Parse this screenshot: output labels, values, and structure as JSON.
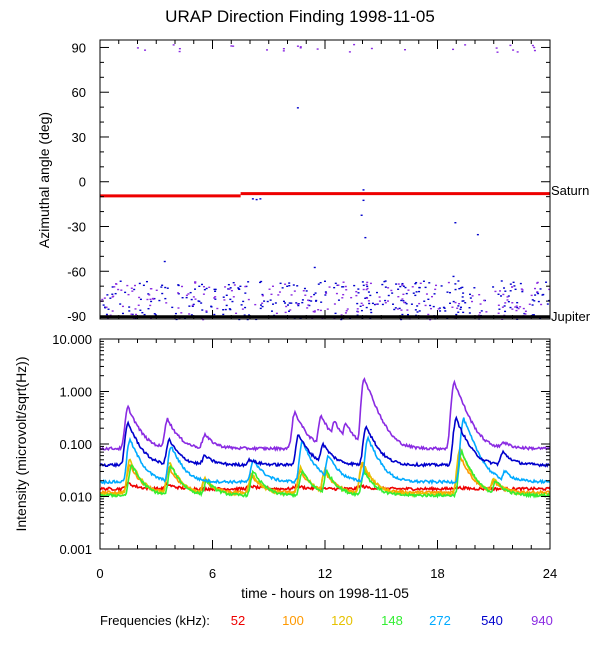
{
  "chart_data": [
    {
      "type": "scatter",
      "title": "URAP Direction Finding  1998-11-05",
      "ylabel": "Azimuthal angle (deg)",
      "xlim": [
        0,
        24
      ],
      "ylim": [
        -92,
        95
      ],
      "yticks": [
        90,
        60,
        30,
        0,
        -30,
        -60,
        -90
      ],
      "ytick_labels": [
        "90",
        "60",
        "30",
        "0",
        "-30",
        "-60",
        "-90"
      ],
      "reference_lines": [
        {
          "label": "Saturn",
          "color": "#ee0000",
          "segments": [
            [
              0,
              7.5,
              -9.5
            ],
            [
              7.5,
              24,
              -8
            ]
          ]
        },
        {
          "label": "Jupiter",
          "color": "#000000",
          "segments": [
            [
              0,
              24,
              -90.5
            ]
          ]
        }
      ],
      "series": [
        {
          "name": "540 kHz",
          "color": "#0000cc",
          "y_band": [
            -92,
            -66
          ],
          "count": 320
        },
        {
          "name": "940 kHz",
          "color": "#8a2be2",
          "y_band": [
            -92,
            -66
          ],
          "count": 220
        },
        {
          "name": "940 kHz high",
          "color": "#8a2be2",
          "y_band": [
            87,
            93
          ],
          "count": 28
        }
      ],
      "outliers": [
        [
          10.5,
          50
        ],
        [
          8.1,
          -11
        ],
        [
          8.3,
          -11.5
        ],
        [
          3.4,
          -53
        ],
        [
          11.4,
          -57
        ],
        [
          14.0,
          -5
        ],
        [
          14.0,
          -12
        ],
        [
          14.1,
          -37
        ],
        [
          13.9,
          -22
        ],
        [
          18.9,
          -27
        ],
        [
          18.8,
          -63
        ],
        [
          18.9,
          -68
        ],
        [
          8.5,
          -11
        ],
        [
          20.1,
          -35
        ]
      ]
    },
    {
      "type": "line",
      "ylabel": "Intensity (microvolt/sqrt(Hz))",
      "xlabel": "time - hours on 1998-11-05",
      "xlim": [
        0,
        24
      ],
      "xticks": [
        0,
        6,
        12,
        18,
        24
      ],
      "xtick_labels": [
        "0",
        "6",
        "12",
        "18",
        "24"
      ],
      "ylim": [
        0.001,
        10
      ],
      "yscale": "log",
      "yticks": [
        10,
        1,
        0.1,
        0.01,
        0.001
      ],
      "ytick_labels": [
        "10.000",
        "1.000",
        "0.100",
        "0.010",
        "0.001"
      ],
      "series": [
        {
          "name": "52",
          "color": "#ee0000",
          "baseline": 0.014,
          "peaks": [
            [
              1.5,
              0.018
            ],
            [
              3.6,
              0.017
            ],
            [
              8.0,
              0.016
            ],
            [
              10.5,
              0.016
            ],
            [
              13.9,
              0.016
            ],
            [
              19.0,
              0.015
            ]
          ]
        },
        {
          "name": "100",
          "color": "#ff9900",
          "baseline": 0.012,
          "peaks": [
            [
              1.6,
              0.04
            ],
            [
              3.7,
              0.035
            ],
            [
              5.6,
              0.02
            ],
            [
              8.1,
              0.025
            ],
            [
              10.7,
              0.03
            ],
            [
              12.0,
              0.03
            ],
            [
              14.0,
              0.04
            ],
            [
              19.2,
              0.06
            ],
            [
              21.0,
              0.02
            ]
          ]
        },
        {
          "name": "120",
          "color": "#e6c200",
          "baseline": 0.011,
          "peaks": [
            [
              1.6,
              0.05
            ],
            [
              3.7,
              0.045
            ],
            [
              5.6,
              0.022
            ],
            [
              8.1,
              0.028
            ],
            [
              10.7,
              0.035
            ],
            [
              12.0,
              0.032
            ],
            [
              14.0,
              0.045
            ],
            [
              19.2,
              0.08
            ],
            [
              21.0,
              0.022
            ]
          ]
        },
        {
          "name": "148",
          "color": "#33ee33",
          "baseline": 0.0105,
          "peaks": [
            [
              1.7,
              0.04
            ],
            [
              3.8,
              0.038
            ],
            [
              5.7,
              0.02
            ],
            [
              8.2,
              0.03
            ],
            [
              10.8,
              0.03
            ],
            [
              12.1,
              0.03
            ],
            [
              14.1,
              0.03
            ],
            [
              19.3,
              0.07
            ],
            [
              21.1,
              0.02
            ]
          ]
        },
        {
          "name": "272",
          "color": "#00aaff",
          "baseline": 0.019,
          "peaks": [
            [
              1.6,
              0.12
            ],
            [
              3.8,
              0.09
            ],
            [
              8.2,
              0.05
            ],
            [
              10.8,
              0.11
            ],
            [
              12.2,
              0.06
            ],
            [
              14.3,
              0.13
            ],
            [
              19.4,
              0.3
            ],
            [
              21.6,
              0.03
            ]
          ]
        },
        {
          "name": "540",
          "color": "#0000cc",
          "baseline": 0.04,
          "peaks": [
            [
              1.5,
              0.25
            ],
            [
              3.7,
              0.12
            ],
            [
              5.6,
              0.06
            ],
            [
              8.0,
              0.05
            ],
            [
              10.6,
              0.15
            ],
            [
              11.9,
              0.1
            ],
            [
              14.2,
              0.22
            ],
            [
              19.0,
              0.3
            ],
            [
              21.5,
              0.07
            ]
          ]
        },
        {
          "name": "940",
          "color": "#8a2be2",
          "baseline": 0.082,
          "peaks": [
            [
              1.5,
              0.5
            ],
            [
              3.6,
              0.3
            ],
            [
              5.6,
              0.15
            ],
            [
              10.4,
              0.4
            ],
            [
              11.8,
              0.35
            ],
            [
              12.5,
              0.28
            ],
            [
              13.1,
              0.25
            ],
            [
              14.1,
              1.8
            ],
            [
              18.9,
              1.5
            ],
            [
              21.5,
              0.11
            ]
          ]
        }
      ]
    }
  ],
  "legend": {
    "label": "Frequencies (kHz):",
    "items": [
      {
        "text": "52",
        "color": "#ee0000"
      },
      {
        "text": "100",
        "color": "#ff9900"
      },
      {
        "text": "120",
        "color": "#e6c200"
      },
      {
        "text": "148",
        "color": "#33ee33"
      },
      {
        "text": "272",
        "color": "#00aaff"
      },
      {
        "text": "540",
        "color": "#0000cc"
      },
      {
        "text": "940",
        "color": "#8a2be2"
      }
    ]
  }
}
